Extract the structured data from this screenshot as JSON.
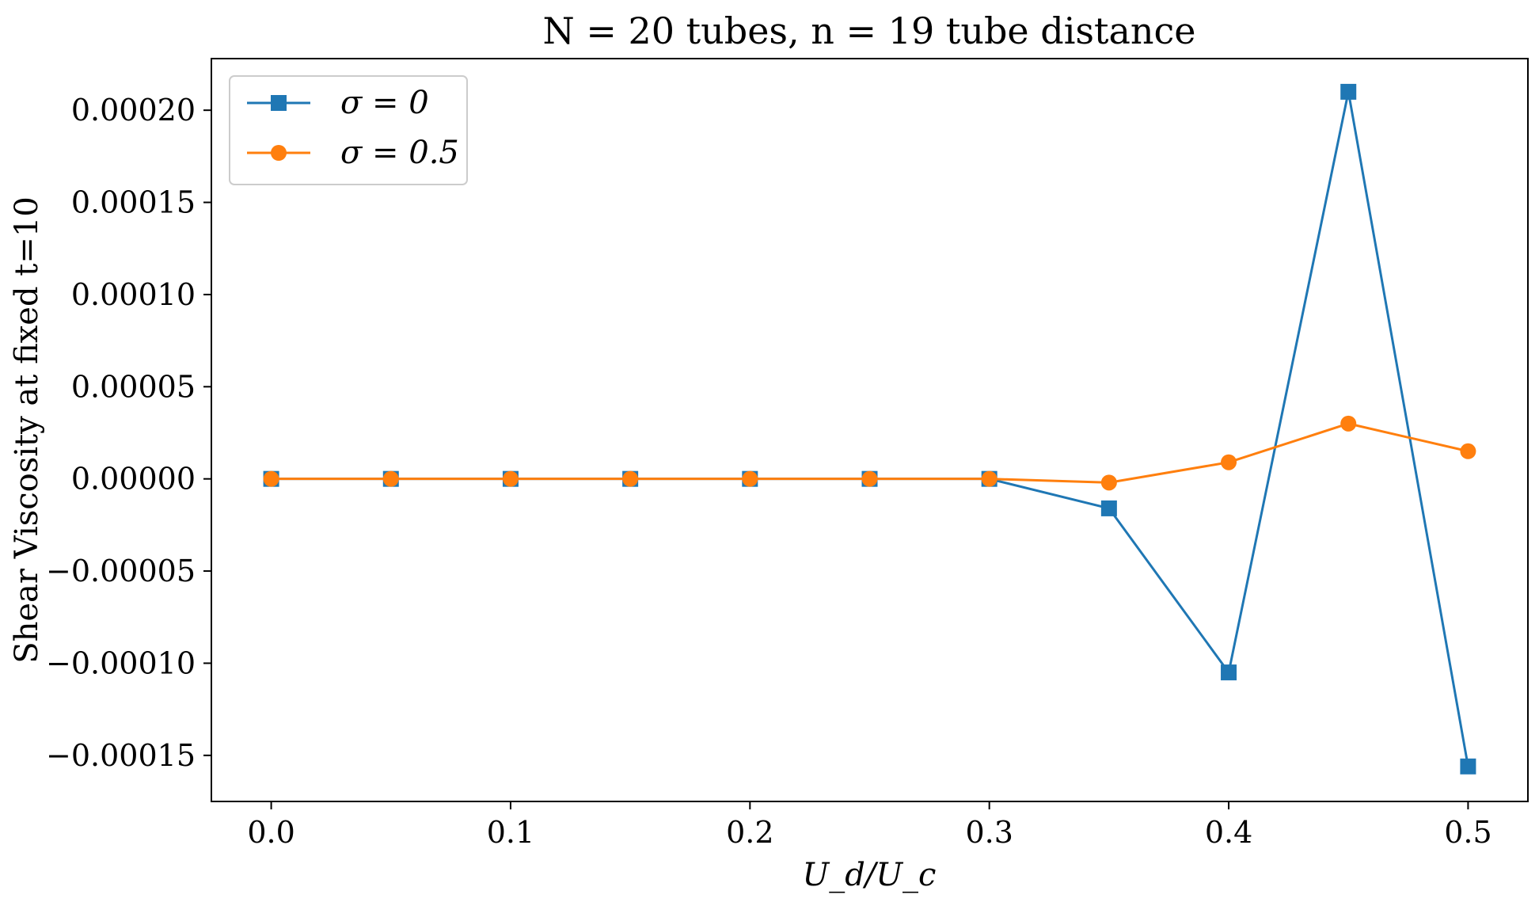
{
  "chart_data": {
    "type": "line",
    "title": "N = 20 tubes, n = 19 tube distance",
    "xlabel": "U_d/U_c",
    "ylabel": "Shear Viscosity at fixed t=10",
    "xlim": [
      -0.025,
      0.525
    ],
    "ylim": [
      -0.000175,
      0.000228
    ],
    "grid": false,
    "legend_position": "top-left",
    "x": [
      0.0,
      0.05,
      0.1,
      0.15,
      0.2,
      0.25,
      0.3,
      0.35,
      0.4,
      0.45,
      0.5
    ],
    "x_ticks": [
      0.0,
      0.1,
      0.2,
      0.3,
      0.4,
      0.5
    ],
    "x_tick_labels": [
      "0.0",
      "0.1",
      "0.2",
      "0.3",
      "0.4",
      "0.5"
    ],
    "y_ticks": [
      -0.00015,
      -0.0001,
      -5e-05,
      0.0,
      5e-05,
      0.0001,
      0.00015,
      0.0002
    ],
    "y_tick_labels": [
      "−0.00015",
      "−0.00010",
      "−0.00005",
      "0.00000",
      "0.00005",
      "0.00010",
      "0.00015",
      "0.00020"
    ],
    "series": [
      {
        "name": "σ = 0",
        "color": "#1f77b4",
        "marker": "square",
        "values": [
          0.0,
          0.0,
          0.0,
          0.0,
          0.0,
          0.0,
          0.0,
          -1.6e-05,
          -0.000105,
          0.00021,
          -0.000156
        ]
      },
      {
        "name": "σ = 0.5",
        "color": "#ff7f0e",
        "marker": "circle",
        "values": [
          0.0,
          0.0,
          0.0,
          0.0,
          0.0,
          0.0,
          0.0,
          -2e-06,
          9e-06,
          3e-05,
          1.5e-05
        ]
      }
    ]
  }
}
